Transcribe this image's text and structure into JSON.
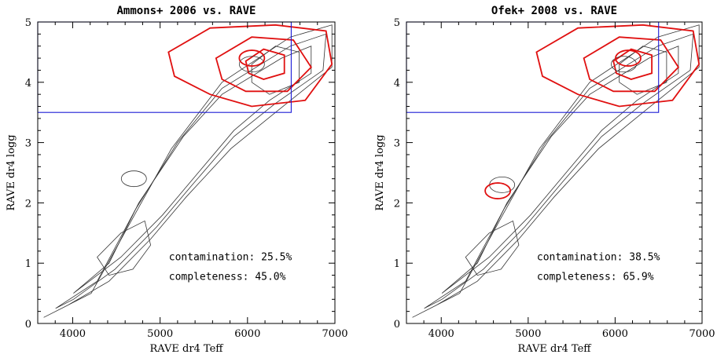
{
  "chart_data": [
    {
      "type": "contour",
      "title": "Ammons+ 2006 vs. RAVE",
      "xlabel": "RAVE dr4 Teff",
      "ylabel": "RAVE dr4 logg",
      "xlim": [
        3600,
        7000
      ],
      "ylim": [
        0,
        5
      ],
      "xticks": [
        4000,
        5000,
        6000,
        7000
      ],
      "yticks": [
        0,
        1,
        2,
        3,
        4,
        5
      ],
      "selection_box": {
        "teff_max": 6500,
        "logg_min": 3.5
      },
      "stats": {
        "contamination_label": "contamination: 25.5%",
        "completeness_label": "completeness: 45.0%"
      },
      "series": [
        {
          "role": "RAVE dwarfs",
          "color": "#333333",
          "peaks": [
            {
              "teff": 6050,
              "logg": 4.3
            },
            {
              "teff": 4700,
              "logg": 2.4
            }
          ]
        },
        {
          "role": "catalog selection",
          "color": "#e01010",
          "peaks": [
            {
              "teff": 6050,
              "logg": 4.4
            }
          ]
        }
      ]
    },
    {
      "type": "contour",
      "title": "Ofek+ 2008 vs. RAVE",
      "xlabel": "RAVE dr4 Teff",
      "ylabel": "RAVE dr4 logg",
      "xlim": [
        3600,
        7000
      ],
      "ylim": [
        0,
        5
      ],
      "xticks": [
        4000,
        5000,
        6000,
        7000
      ],
      "yticks": [
        0,
        1,
        2,
        3,
        4,
        5
      ],
      "selection_box": {
        "teff_max": 6500,
        "logg_min": 3.5
      },
      "stats": {
        "contamination_label": "contamination: 38.5%",
        "completeness_label": "completeness: 65.9%"
      },
      "series": [
        {
          "role": "RAVE dwarfs",
          "color": "#333333",
          "peaks": [
            {
              "teff": 6100,
              "logg": 4.3
            },
            {
              "teff": 4700,
              "logg": 2.3
            }
          ]
        },
        {
          "role": "catalog selection",
          "color": "#e01010",
          "peaks": [
            {
              "teff": 6150,
              "logg": 4.4
            },
            {
              "teff": 4650,
              "logg": 2.2
            }
          ]
        }
      ]
    }
  ]
}
